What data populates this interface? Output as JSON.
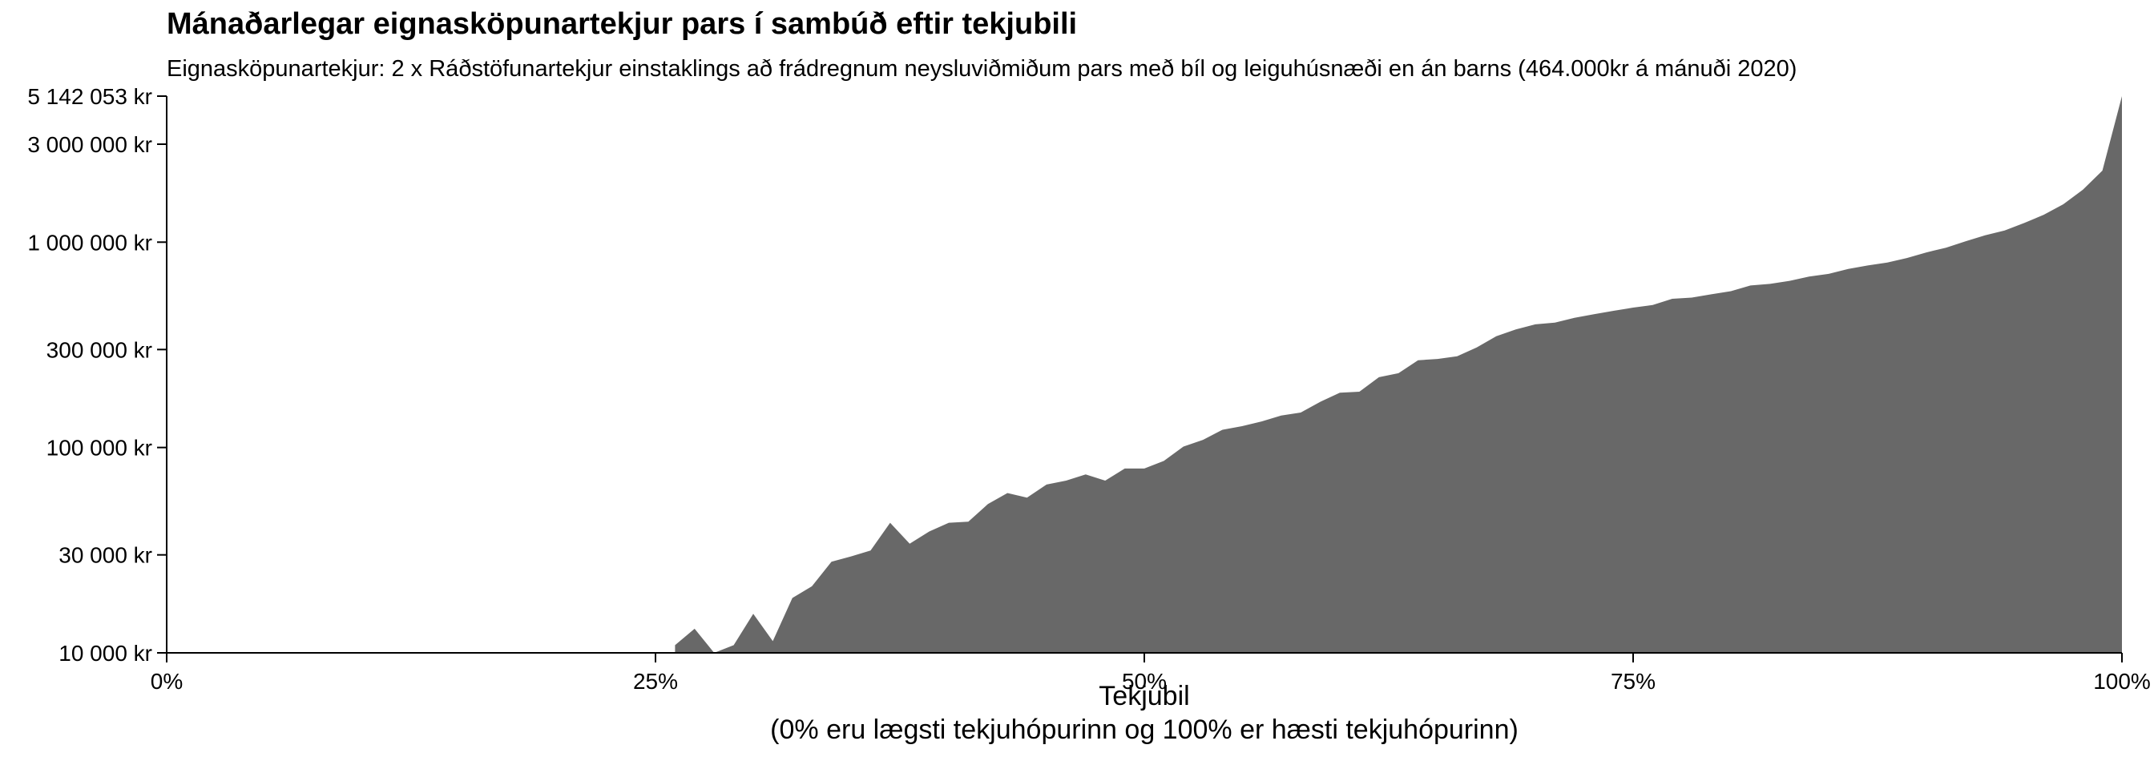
{
  "chart_data": {
    "type": "area",
    "title": "Mánaðarlegar eignasköpunartekjur pars í sambúð eftir tekjubili",
    "subtitle": "Eignasköpunartekjur: 2 x Ráðstöfunartekjur einstaklings að frádregnum neysluviðmiðum pars með bíl og leiguhúsnæði en án barns (464.000kr á mánuði 2020)",
    "xlabel": "Tekjubil",
    "xlabel_note": "(0% eru lægsti tekjuhópurinn og 100% er hæsti tekjuhópurinn)",
    "ylabel": "",
    "y_scale": "log",
    "xlim": [
      0,
      1
    ],
    "ylim": [
      10000,
      5142053
    ],
    "x_ticks": [
      {
        "value": 0,
        "label": "0%"
      },
      {
        "value": 0.25,
        "label": "25%"
      },
      {
        "value": 0.5,
        "label": "50%"
      },
      {
        "value": 0.75,
        "label": "75%"
      },
      {
        "value": 1,
        "label": "100%"
      }
    ],
    "y_ticks": [
      {
        "value": 10000,
        "label": "10 000 kr"
      },
      {
        "value": 30000,
        "label": "30 000 kr"
      },
      {
        "value": 100000,
        "label": "100 000 kr"
      },
      {
        "value": 300000,
        "label": "300 000 kr"
      },
      {
        "value": 1000000,
        "label": "1 000 000 kr"
      },
      {
        "value": 3000000,
        "label": "3 000 000 kr"
      },
      {
        "value": 5142053,
        "label": "5 142 053 kr"
      }
    ],
    "fill_color": "#686868",
    "grid": false,
    "x": [
      0.26,
      0.27,
      0.28,
      0.29,
      0.3,
      0.31,
      0.32,
      0.33,
      0.34,
      0.35,
      0.36,
      0.37,
      0.38,
      0.39,
      0.4,
      0.41,
      0.42,
      0.43,
      0.44,
      0.45,
      0.46,
      0.47,
      0.48,
      0.49,
      0.5,
      0.51,
      0.52,
      0.53,
      0.54,
      0.55,
      0.56,
      0.57,
      0.58,
      0.59,
      0.6,
      0.61,
      0.62,
      0.63,
      0.64,
      0.65,
      0.66,
      0.67,
      0.68,
      0.69,
      0.7,
      0.71,
      0.72,
      0.73,
      0.74,
      0.75,
      0.76,
      0.77,
      0.78,
      0.79,
      0.8,
      0.81,
      0.82,
      0.83,
      0.84,
      0.85,
      0.86,
      0.87,
      0.88,
      0.89,
      0.9,
      0.91,
      0.92,
      0.93,
      0.94,
      0.95,
      0.96,
      0.97,
      0.98,
      0.99,
      1.0
    ],
    "values": [
      10900,
      13100,
      10000,
      10900,
      15500,
      11400,
      18500,
      21100,
      27800,
      29500,
      31500,
      43000,
      34000,
      39000,
      43000,
      43500,
      53000,
      60000,
      57000,
      66000,
      69000,
      74000,
      69000,
      79000,
      79000,
      86000,
      101000,
      109000,
      122000,
      127000,
      134000,
      143000,
      148000,
      167000,
      185000,
      187000,
      220000,
      230000,
      266000,
      270000,
      278000,
      307000,
      348000,
      376000,
      398000,
      406000,
      428000,
      446000,
      463000,
      480000,
      494000,
      530000,
      537000,
      557000,
      577000,
      615000,
      626000,
      648000,
      680000,
      701000,
      741000,
      770000,
      796000,
      837000,
      891000,
      940000,
      1010000,
      1080000,
      1140000,
      1240000,
      1360000,
      1530000,
      1800000,
      2230000,
      5142053
    ]
  }
}
